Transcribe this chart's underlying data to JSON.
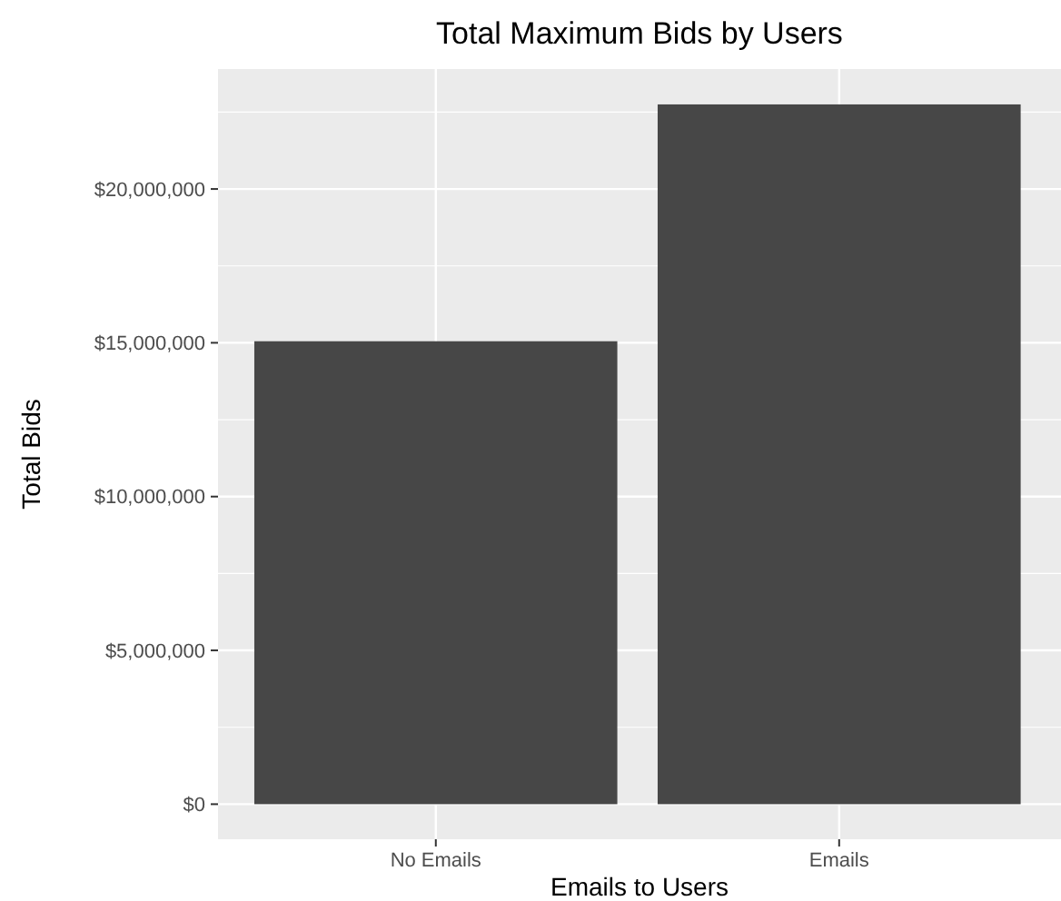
{
  "chart_data": {
    "type": "bar",
    "title": "Total Maximum Bids by Users",
    "xlabel": "Emails to Users",
    "ylabel": "Total Bids",
    "categories": [
      "No Emails",
      "Emails"
    ],
    "values": [
      15050000,
      22750000
    ],
    "color": "#474747",
    "ylim": [
      -1140000,
      23900000
    ],
    "yticks": [
      {
        "value": 0,
        "label": "$0"
      },
      {
        "value": 5000000,
        "label": "$5,000,000"
      },
      {
        "value": 10000000,
        "label": "$10,000,000"
      },
      {
        "value": 15000000,
        "label": "$15,000,000"
      },
      {
        "value": 20000000,
        "label": "$20,000,000"
      }
    ],
    "grid": true
  }
}
